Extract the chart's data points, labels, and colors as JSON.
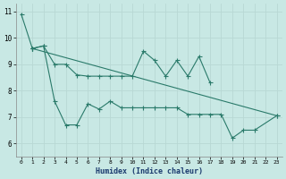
{
  "xlabel": "Humidex (Indice chaleur)",
  "x": [
    0,
    1,
    2,
    3,
    4,
    5,
    6,
    7,
    8,
    9,
    10,
    11,
    12,
    13,
    14,
    15,
    16,
    17,
    18,
    19,
    20,
    21,
    22,
    23
  ],
  "line1": [
    10.9,
    9.6,
    null,
    null,
    null,
    null,
    null,
    null,
    null,
    null,
    null,
    null,
    null,
    null,
    null,
    null,
    null,
    null,
    null,
    null,
    null,
    null,
    null,
    null
  ],
  "line2": [
    null,
    9.6,
    9.7,
    9.0,
    9.0,
    8.6,
    8.55,
    8.55,
    8.55,
    8.55,
    8.55,
    9.5,
    9.15,
    8.55,
    9.15,
    8.55,
    9.3,
    8.3,
    null,
    null,
    null,
    null,
    null,
    null
  ],
  "line3": [
    null,
    9.6,
    null,
    null,
    null,
    null,
    null,
    null,
    null,
    null,
    null,
    null,
    null,
    null,
    null,
    null,
    null,
    null,
    null,
    null,
    null,
    null,
    null,
    7.05
  ],
  "line4": [
    null,
    9.6,
    9.7,
    7.6,
    6.7,
    6.7,
    7.5,
    7.3,
    7.6,
    7.35,
    7.35,
    7.35,
    7.35,
    7.35,
    7.35,
    7.1,
    7.1,
    7.1,
    7.1,
    6.2,
    6.5,
    6.5,
    null,
    7.05
  ],
  "bg_color": "#c8e8e4",
  "line_color": "#2a7a6a",
  "grid_color": "#b8d8d4",
  "ylim": [
    5.5,
    11.3
  ],
  "xlim": [
    -0.5,
    23.5
  ],
  "yticks": [
    6,
    7,
    8,
    9,
    10,
    11
  ],
  "xticks": [
    0,
    1,
    2,
    3,
    4,
    5,
    6,
    7,
    8,
    9,
    10,
    11,
    12,
    13,
    14,
    15,
    16,
    17,
    18,
    19,
    20,
    21,
    22,
    23
  ]
}
